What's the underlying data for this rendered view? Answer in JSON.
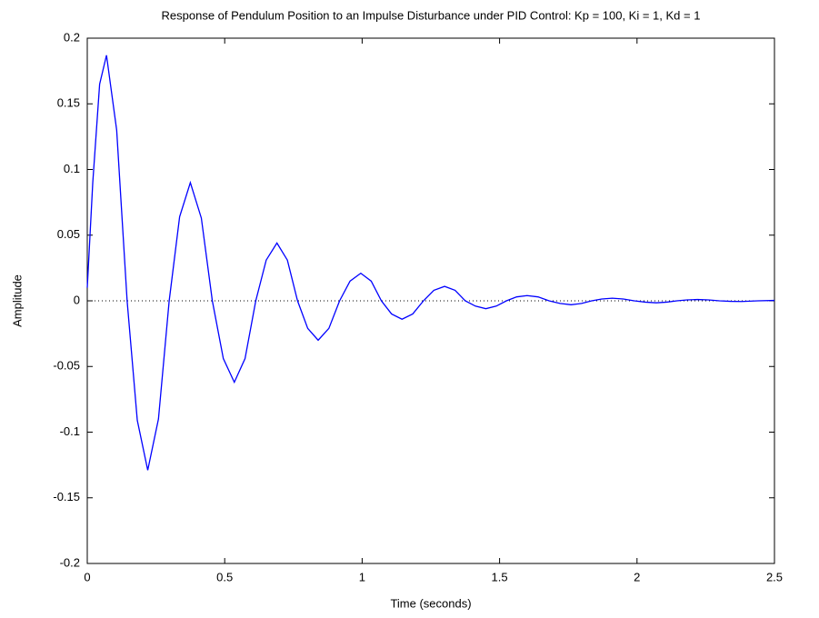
{
  "chart_data": {
    "type": "line",
    "title": "Response of Pendulum Position to an Impulse Disturbance under PID Control: Kp = 100, Ki = 1, Kd = 1",
    "x_label": "Time (seconds)",
    "y_label": "Amplitude",
    "x": [
      0,
      0.02,
      0.045,
      0.07,
      0.107,
      0.145,
      0.182,
      0.22,
      0.259,
      0.298,
      0.336,
      0.375,
      0.415,
      0.455,
      0.495,
      0.535,
      0.574,
      0.613,
      0.651,
      0.69,
      0.728,
      0.765,
      0.802,
      0.84,
      0.879,
      0.918,
      0.956,
      0.995,
      1.033,
      1.07,
      1.107,
      1.145,
      1.184,
      1.223,
      1.261,
      1.3,
      1.338,
      1.375,
      1.412,
      1.45,
      1.488,
      1.525,
      1.562,
      1.6,
      1.64,
      1.68,
      1.72,
      1.76,
      1.798,
      1.835,
      1.872,
      1.91,
      1.95,
      1.99,
      2.03,
      2.07,
      2.108,
      2.145,
      2.182,
      2.22,
      2.26,
      2.3,
      2.34,
      2.38,
      2.44,
      2.5
    ],
    "series": [
      {
        "color": "#0000ff",
        "values": [
          0.01,
          0.09,
          0.165,
          0.187,
          0.13,
          0,
          -0.091,
          -0.129,
          -0.09,
          0,
          0.064,
          0.09,
          0.063,
          0,
          -0.044,
          -0.062,
          -0.044,
          0,
          0.031,
          0.044,
          0.031,
          0,
          -0.021,
          -0.03,
          -0.021,
          0,
          0.015,
          0.021,
          0.015,
          0,
          -0.01,
          -0.014,
          -0.01,
          0,
          0.008,
          0.011,
          0.008,
          0,
          -0.004,
          -0.006,
          -0.004,
          0,
          0.003,
          0.004,
          0.003,
          0,
          -0.002,
          -0.003,
          -0.002,
          0,
          0.0014,
          0.002,
          0.0014,
          0,
          -0.001,
          -0.0015,
          -0.001,
          0,
          0.0007,
          0.001,
          0.0007,
          0,
          -0.0004,
          -0.0005,
          0,
          0.0003
        ]
      }
    ],
    "xlim": [
      0,
      2.5
    ],
    "ylim": [
      -0.2,
      0.2
    ],
    "xticks": [
      0,
      0.5,
      1,
      1.5,
      2,
      2.5
    ],
    "yticks": [
      -0.2,
      -0.15,
      -0.1,
      -0.05,
      0,
      0.05,
      0.1,
      0.15,
      0.2
    ],
    "zero_line": true,
    "grid": false
  }
}
